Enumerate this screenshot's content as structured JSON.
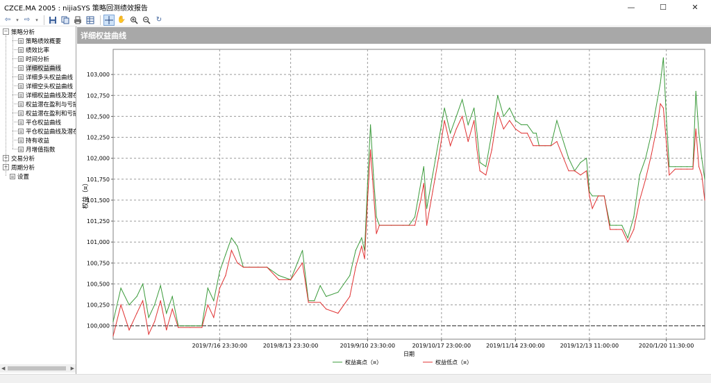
{
  "window": {
    "title": "CZCE.MA 2005 : nijiaSYS 策略回测绩效报告",
    "minimize": "—",
    "maximize": "☐",
    "close": "✕"
  },
  "toolbar": {
    "icons": [
      "back-icon",
      "forward-icon",
      "save-icon",
      "copy-icon",
      "print-icon",
      "table-icon",
      "crosshair-icon",
      "hand-icon",
      "zoom-in-icon",
      "zoom-out-icon",
      "refresh-icon"
    ]
  },
  "tree": {
    "root1": "策略分析",
    "items": [
      "策略绩效概要",
      "绩效比率",
      "时间分析",
      "详细权益曲线",
      "详细多头权益曲线",
      "详细空头权益曲线",
      "详细权益曲线及潜在",
      "权益潜在盈利与亏损",
      "权益潜在盈利和亏损",
      "平仓权益曲线",
      "平仓权益曲线及潜在",
      "持有收益",
      "月增值指数"
    ],
    "root2": "交易分析",
    "root3": "周期分析",
    "settings": "设置",
    "selected_index": 3
  },
  "panel": {
    "title": "详细权益曲线"
  },
  "chart_data": {
    "type": "line",
    "ylabel": "权益（¤）",
    "xlabel": "日期",
    "ylim": [
      99840,
      103300
    ],
    "y_ticks": [
      "100,000",
      "100,250",
      "100,500",
      "100,750",
      "101,000",
      "101,250",
      "101,500",
      "101,750",
      "102,000",
      "102,250",
      "102,500",
      "102,750",
      "103,000"
    ],
    "y_tick_values": [
      100000,
      100250,
      100500,
      100750,
      101000,
      101250,
      101500,
      101750,
      102000,
      102250,
      102500,
      102750,
      103000
    ],
    "x_ticks": [
      "2019/7/16 23:30:00",
      "2019/8/13 23:30:00",
      "2019/9/10 23:30:00",
      "2019/10/17 23:00:00",
      "2019/11/14 23:00:00",
      "2019/12/13 11:00:00",
      "2020/1/20 11:30:00"
    ],
    "x_tick_positions": [
      0.18,
      0.3,
      0.43,
      0.555,
      0.68,
      0.805,
      0.935
    ],
    "grid": true,
    "legend_position": "bottom-center",
    "series": [
      {
        "name": "权益高点（¤）",
        "color": "#3a9a3a",
        "x": [
          0.0,
          0.013,
          0.027,
          0.04,
          0.05,
          0.06,
          0.07,
          0.08,
          0.09,
          0.1,
          0.11,
          0.13,
          0.15,
          0.16,
          0.17,
          0.18,
          0.19,
          0.2,
          0.21,
          0.22,
          0.23,
          0.245,
          0.26,
          0.28,
          0.3,
          0.32,
          0.33,
          0.34,
          0.35,
          0.36,
          0.38,
          0.4,
          0.41,
          0.42,
          0.425,
          0.43,
          0.435,
          0.44,
          0.445,
          0.45,
          0.47,
          0.49,
          0.5,
          0.51,
          0.52,
          0.525,
          0.53,
          0.54,
          0.55,
          0.56,
          0.57,
          0.58,
          0.59,
          0.6,
          0.61,
          0.615,
          0.62,
          0.63,
          0.64,
          0.65,
          0.66,
          0.67,
          0.68,
          0.69,
          0.7,
          0.71,
          0.715,
          0.72,
          0.73,
          0.74,
          0.75,
          0.77,
          0.78,
          0.79,
          0.8,
          0.805,
          0.81,
          0.82,
          0.83,
          0.84,
          0.85,
          0.86,
          0.87,
          0.88,
          0.89,
          0.9,
          0.91,
          0.92,
          0.925,
          0.93,
          0.935,
          0.94,
          0.95,
          0.96,
          0.97,
          0.98,
          0.985,
          0.99,
          0.995,
          1.0
        ],
        "values": [
          100050,
          100450,
          100250,
          100350,
          100500,
          100100,
          100250,
          100480,
          100150,
          100350,
          100000,
          100000,
          100000,
          100450,
          100300,
          100650,
          100850,
          101050,
          100950,
          100700,
          100700,
          100700,
          100700,
          100600,
          100550,
          100900,
          100300,
          100300,
          100480,
          100350,
          100400,
          100600,
          100900,
          101050,
          100900,
          101700,
          102400,
          101800,
          101300,
          101200,
          101200,
          101200,
          101200,
          101300,
          101700,
          101900,
          101400,
          101800,
          102200,
          102600,
          102300,
          102500,
          102700,
          102400,
          102600,
          102300,
          101950,
          101900,
          102300,
          102750,
          102500,
          102600,
          102450,
          102400,
          102400,
          102300,
          102300,
          102150,
          102150,
          102150,
          102450,
          102000,
          101850,
          101950,
          102000,
          101600,
          101550,
          101550,
          101550,
          101200,
          101200,
          101200,
          101050,
          101300,
          101800,
          102000,
          102300,
          102700,
          102900,
          103200,
          102500,
          101900,
          101900,
          101900,
          101900,
          101900,
          102800,
          102300,
          102000,
          101750
        ]
      },
      {
        "name": "权益低点（¤）",
        "color": "#e03030",
        "x": [
          0.0,
          0.013,
          0.027,
          0.04,
          0.05,
          0.06,
          0.07,
          0.08,
          0.09,
          0.1,
          0.11,
          0.13,
          0.15,
          0.16,
          0.17,
          0.18,
          0.19,
          0.2,
          0.21,
          0.22,
          0.23,
          0.245,
          0.26,
          0.28,
          0.3,
          0.32,
          0.33,
          0.34,
          0.35,
          0.36,
          0.38,
          0.4,
          0.41,
          0.42,
          0.425,
          0.43,
          0.435,
          0.44,
          0.445,
          0.45,
          0.47,
          0.49,
          0.5,
          0.51,
          0.52,
          0.525,
          0.53,
          0.54,
          0.55,
          0.56,
          0.57,
          0.58,
          0.59,
          0.6,
          0.61,
          0.615,
          0.62,
          0.63,
          0.64,
          0.65,
          0.66,
          0.67,
          0.68,
          0.69,
          0.7,
          0.71,
          0.715,
          0.72,
          0.73,
          0.74,
          0.75,
          0.77,
          0.78,
          0.79,
          0.8,
          0.805,
          0.81,
          0.82,
          0.83,
          0.84,
          0.85,
          0.86,
          0.87,
          0.88,
          0.89,
          0.9,
          0.91,
          0.92,
          0.925,
          0.93,
          0.935,
          0.94,
          0.95,
          0.96,
          0.97,
          0.98,
          0.985,
          0.99,
          0.995,
          1.0
        ],
        "values": [
          99880,
          100250,
          99950,
          100150,
          100300,
          99900,
          100050,
          100300,
          99950,
          100200,
          99980,
          99980,
          99980,
          100250,
          100100,
          100450,
          100600,
          100900,
          100750,
          100700,
          100700,
          100700,
          100700,
          100550,
          100550,
          100750,
          100280,
          100280,
          100280,
          100200,
          100150,
          100350,
          100700,
          100950,
          100800,
          101500,
          102100,
          101600,
          101100,
          101200,
          101200,
          101200,
          101200,
          101200,
          101500,
          101700,
          101200,
          101600,
          102000,
          102450,
          102150,
          102350,
          102500,
          102200,
          102450,
          102100,
          101850,
          101800,
          102100,
          102550,
          102350,
          102450,
          102350,
          102300,
          102300,
          102150,
          102150,
          102150,
          102150,
          102150,
          102200,
          101850,
          101850,
          101800,
          101850,
          101550,
          101400,
          101550,
          101550,
          101150,
          101150,
          101150,
          101000,
          101150,
          101500,
          101750,
          102050,
          102400,
          102650,
          102600,
          102200,
          101800,
          101870,
          101870,
          101870,
          101870,
          102350,
          101900,
          101800,
          101500
        ]
      }
    ]
  }
}
